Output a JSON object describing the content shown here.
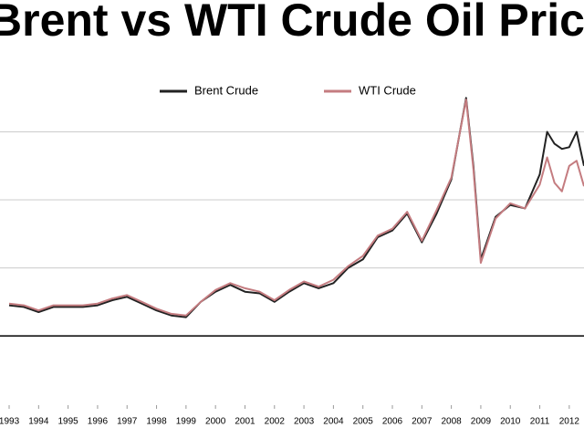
{
  "chart_data": {
    "type": "line",
    "title": "Brent vs WTI Crude Oil Prices",
    "x": [
      1993,
      1993.5,
      1994,
      1994.5,
      1995,
      1995.5,
      1996,
      1996.5,
      1997,
      1997.5,
      1998,
      1998.5,
      1999,
      1999.5,
      2000,
      2000.5,
      2001,
      2001.5,
      2002,
      2002.5,
      2003,
      2003.5,
      2004,
      2004.5,
      2005,
      2005.5,
      2006,
      2006.5,
      2007,
      2007.5,
      2008,
      2008.5,
      2008.75,
      2009,
      2009.5,
      2010,
      2010.5,
      2011,
      2011.25,
      2011.5,
      2011.75,
      2012,
      2012.25,
      2012.5
    ],
    "series": [
      {
        "name": "Brent Crude",
        "color": "#222222",
        "values": [
          18,
          17,
          14,
          17,
          17,
          17,
          18,
          21,
          23,
          19,
          15,
          12,
          11,
          20,
          26,
          30,
          26,
          25,
          20,
          26,
          31,
          28,
          31,
          40,
          45,
          58,
          62,
          72,
          55,
          72,
          92,
          140,
          100,
          45,
          70,
          77,
          75,
          95,
          120,
          113,
          110,
          111,
          120,
          100
        ]
      },
      {
        "name": "WTI Crude",
        "color": "#c47c80",
        "values": [
          19,
          18,
          15,
          18,
          18,
          18,
          19,
          22,
          24,
          20,
          16,
          13,
          12,
          20,
          27,
          31,
          28,
          26,
          21,
          27,
          32,
          29,
          33,
          41,
          47,
          59,
          63,
          73,
          56,
          74,
          93,
          139,
          98,
          43,
          69,
          78,
          75,
          89,
          105,
          90,
          85,
          100,
          103,
          88
        ]
      }
    ],
    "xlim": [
      1992.69,
      2012.5
    ],
    "ylim": [
      -30,
      160
    ],
    "xticks": [
      1993,
      1994,
      1995,
      1996,
      1997,
      1998,
      1999,
      2000,
      2001,
      2002,
      2003,
      2004,
      2005,
      2006,
      2007,
      2008,
      2009,
      2010,
      2011,
      2012
    ],
    "yticks": [
      0,
      40,
      80,
      120
    ],
    "grid": true,
    "legend": "top"
  }
}
